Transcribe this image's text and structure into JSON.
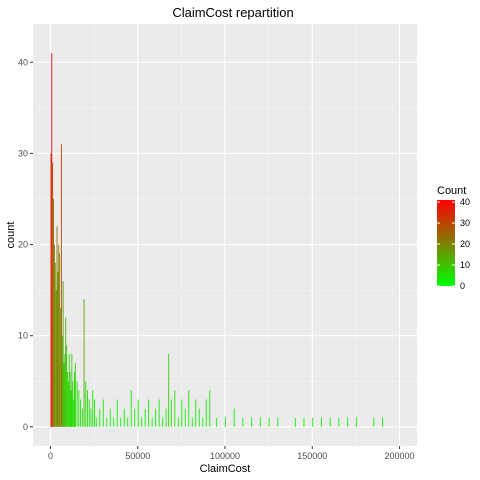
{
  "chart_data": {
    "type": "bar",
    "title": "ClaimCost repartition",
    "xlabel": "ClaimCost",
    "ylabel": "count",
    "xlim": [
      -10000,
      210000
    ],
    "ylim": [
      -2.1,
      44.2
    ],
    "x_ticks": [
      0,
      50000,
      100000,
      150000,
      200000
    ],
    "x_tick_labels": [
      "0",
      "50000",
      "100000",
      "150000",
      "200000"
    ],
    "y_ticks": [
      0,
      10,
      20,
      30,
      40
    ],
    "y_tick_labels": [
      "0",
      "10",
      "20",
      "30",
      "40"
    ],
    "grid": true,
    "legend": {
      "title": "Count",
      "position": "right",
      "ticks": [
        0,
        10,
        20,
        30,
        40
      ],
      "tick_labels": [
        "0",
        "10",
        "20",
        "30",
        "40"
      ],
      "range": [
        0,
        41
      ],
      "low_color": "#00FF00",
      "high_color": "#FF0000"
    },
    "bin_width": 500,
    "series": [
      {
        "x": [
          0,
          500,
          1000,
          1500,
          2000,
          2500,
          3000,
          3500,
          4000,
          4500,
          5000,
          5500,
          6000,
          6500,
          7000,
          7500,
          8000,
          8500,
          9000,
          9500,
          10000,
          10500,
          11000,
          11500,
          12000,
          12500,
          13000,
          13500,
          14000,
          15000,
          16000,
          17000,
          18000,
          19000,
          20000,
          21000,
          22000,
          23000,
          24000,
          25000,
          26000,
          28000,
          30000,
          32000,
          34000,
          36000,
          38000,
          40000,
          42000,
          44000,
          46000,
          48000,
          50000,
          52000,
          54000,
          56000,
          58000,
          60000,
          62000,
          64000,
          66000,
          67500,
          69000,
          71000,
          73000,
          75000,
          77000,
          79000,
          81000,
          83000,
          85000,
          87000,
          89000,
          91000,
          95000,
          100000,
          105000,
          110000,
          115000,
          120000,
          125000,
          130000,
          140000,
          145000,
          150000,
          155000,
          160000,
          165000,
          170000,
          175000,
          185000,
          190000
        ],
        "values": [
          30,
          41,
          29,
          25,
          20,
          18,
          15,
          22,
          17,
          20,
          19,
          13,
          31,
          10,
          16,
          7,
          8,
          12,
          9,
          6,
          5,
          8,
          6,
          4,
          8,
          5,
          3,
          6,
          7,
          5,
          4,
          3,
          2,
          14,
          5,
          4,
          3,
          2,
          4,
          3,
          1,
          2,
          3,
          1,
          2,
          1,
          3,
          1,
          2,
          1,
          4,
          2,
          3,
          1,
          2,
          3,
          1,
          2,
          3,
          1,
          2,
          8,
          3,
          4,
          1,
          3,
          2,
          4,
          1,
          3,
          2,
          1,
          3,
          4,
          1,
          1,
          2,
          1,
          1,
          1,
          1,
          1,
          1,
          1,
          1,
          1,
          1,
          1,
          1,
          1,
          1,
          1
        ]
      }
    ]
  }
}
